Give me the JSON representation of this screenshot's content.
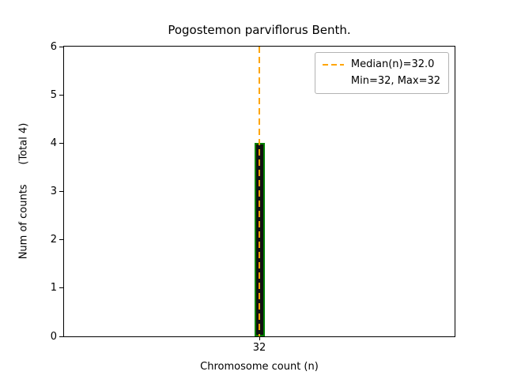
{
  "chart_data": {
    "type": "bar",
    "title": "Pogostemon parviflorus Benth.",
    "xlabel": "Chromosome count (n)",
    "ylabel": "Num of counts      (Total 4)",
    "categories": [
      "32"
    ],
    "values": [
      4
    ],
    "total_count": 4,
    "ylim": [
      0,
      6
    ],
    "yticks": [
      0,
      1,
      2,
      3,
      4,
      5,
      6
    ],
    "grid": false,
    "median": {
      "value": 32.0,
      "line_style": "dashed"
    },
    "min": 32,
    "max": 32,
    "legend": {
      "position": "upper right",
      "entries": [
        {
          "label": "Median(n)=32.0",
          "symbol": "dashed-line"
        },
        {
          "label": "Min=32, Max=32",
          "symbol": "none"
        }
      ]
    },
    "colors": {
      "median_line": "#ffa500",
      "bar_edge": "#008000",
      "bar_fill": "#111111",
      "axis": "#000000",
      "background": "#ffffff"
    }
  }
}
